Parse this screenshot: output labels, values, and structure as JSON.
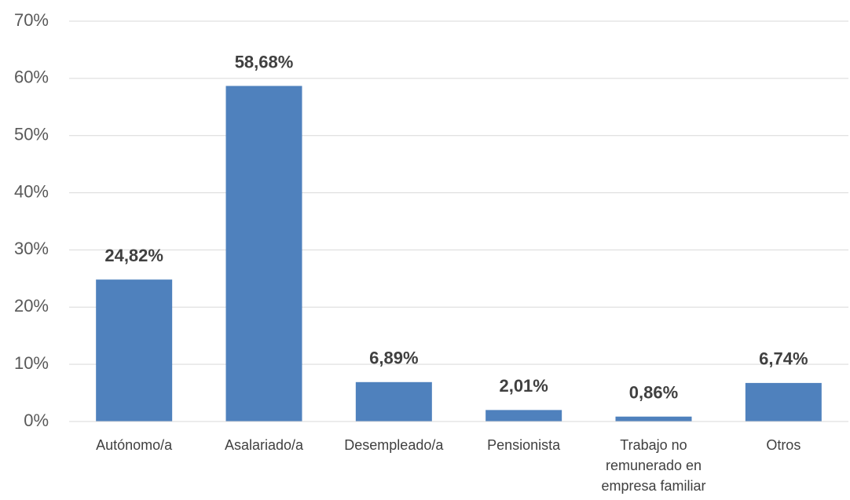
{
  "chart_data": {
    "type": "bar",
    "categories": [
      "Autónomo/a",
      "Asalariado/a",
      "Desempleado/a",
      "Pensionista",
      "Trabajo no remunerado en empresa familiar",
      "Otros"
    ],
    "values": [
      24.82,
      58.68,
      6.89,
      2.01,
      0.86,
      6.74
    ],
    "value_labels": [
      "24,82%",
      "58,68%",
      "6,89%",
      "2,01%",
      "0,86%",
      "6,74%"
    ],
    "color": "#4f81bd",
    "ylim": [
      0,
      70
    ],
    "yticks": [
      {
        "value": 0,
        "label": "0%"
      },
      {
        "value": 10,
        "label": "10%"
      },
      {
        "value": 20,
        "label": "20%"
      },
      {
        "value": 30,
        "label": "30%"
      },
      {
        "value": 40,
        "label": "40%"
      },
      {
        "value": 50,
        "label": "50%"
      },
      {
        "value": 60,
        "label": "60%"
      },
      {
        "value": 70,
        "label": "70%"
      }
    ],
    "grid": true
  }
}
